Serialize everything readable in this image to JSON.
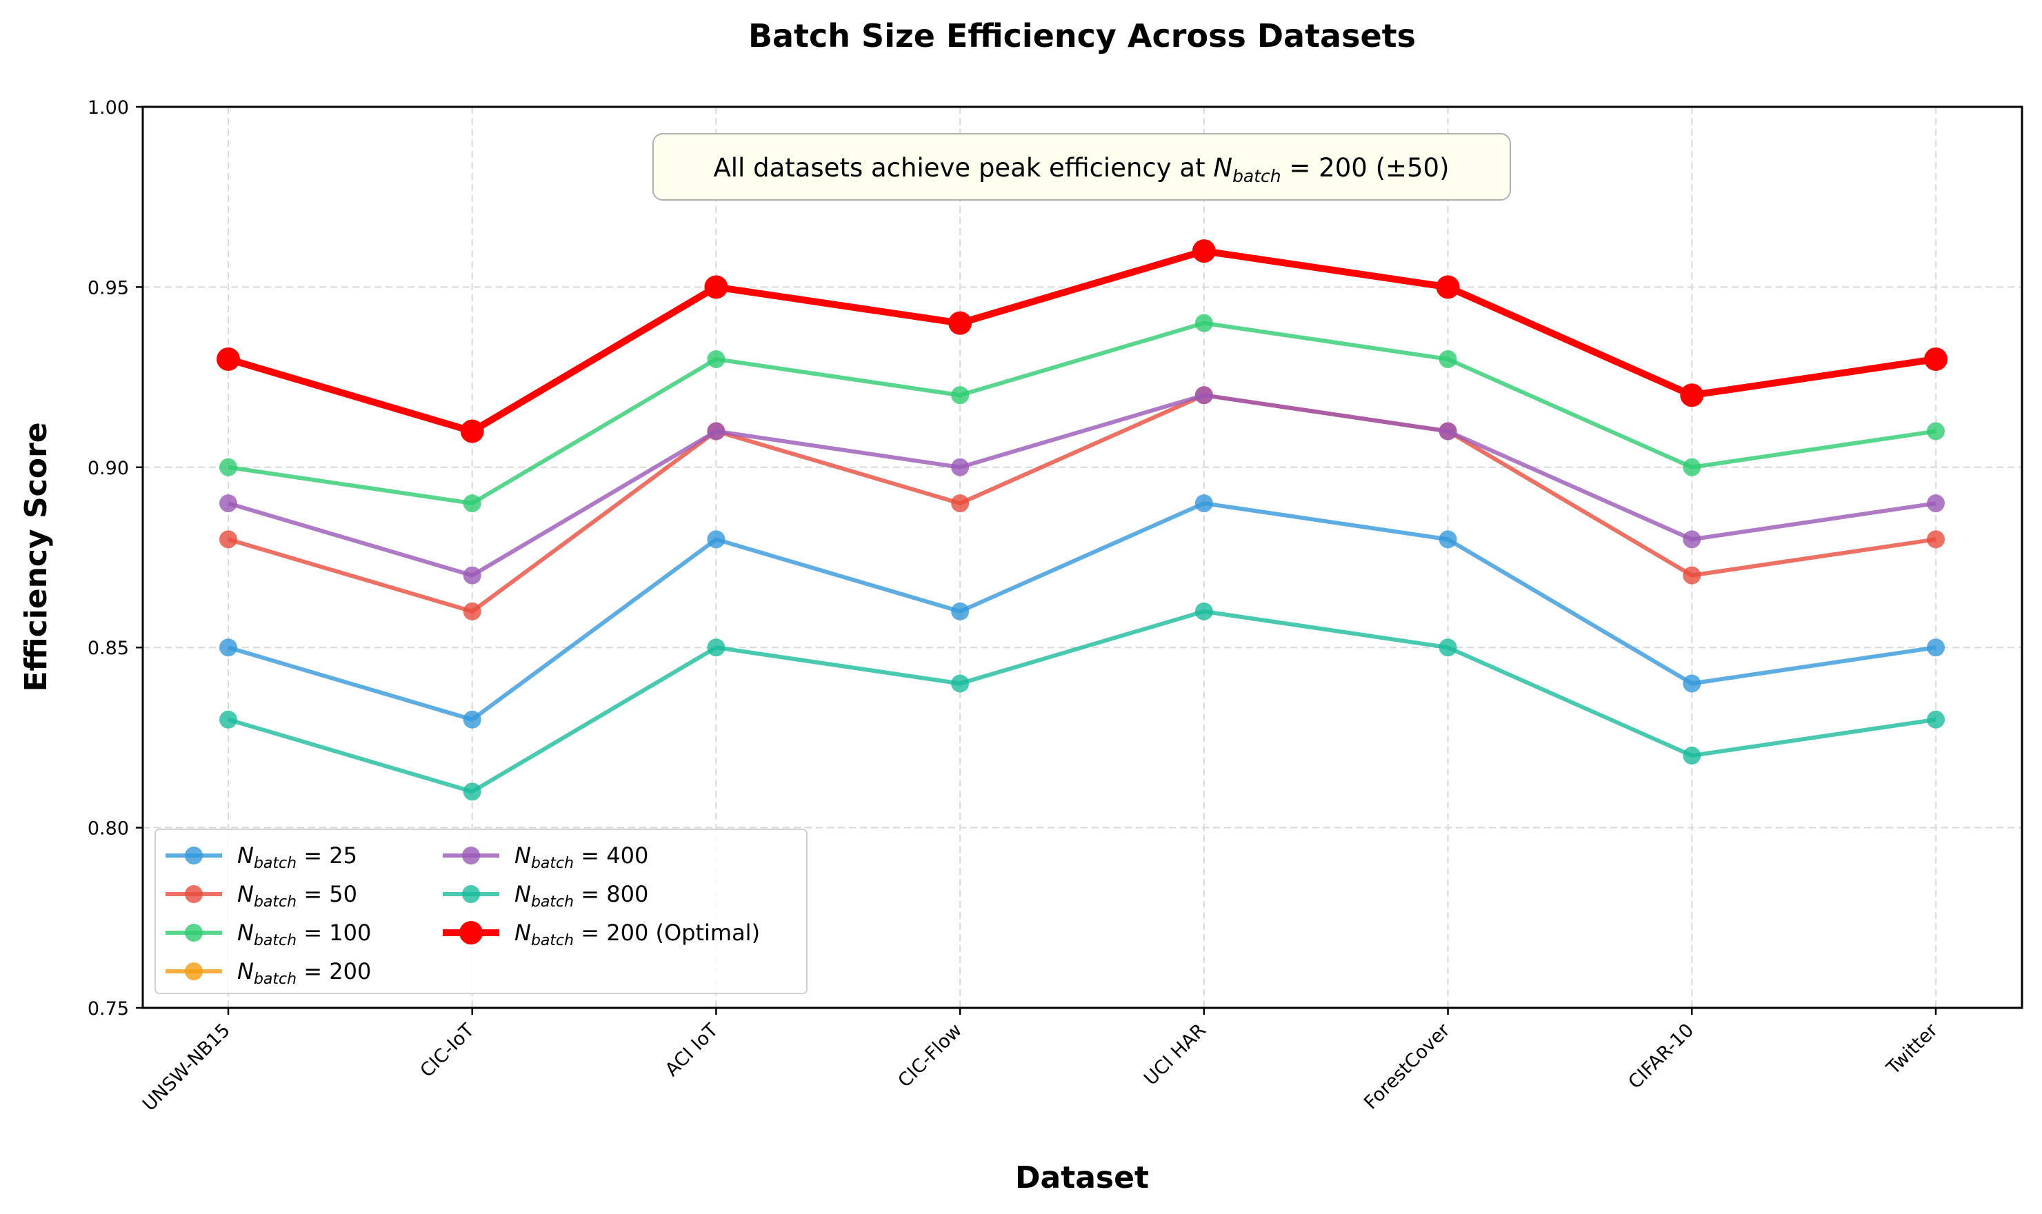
{
  "chart_data": {
    "type": "line",
    "title": "Batch Size Efficiency Across Datasets",
    "xlabel": "Dataset",
    "ylabel": "Efficiency Score",
    "ylim": [
      0.75,
      1.0
    ],
    "yticks": [
      "0.75",
      "0.80",
      "0.85",
      "0.90",
      "0.95",
      "1.00"
    ],
    "ytick_values": [
      0.75,
      0.8,
      0.85,
      0.9,
      0.95,
      1.0
    ],
    "grid": true,
    "legend_position": "lower-left",
    "categories": [
      "UNSW-NB15",
      "CIC-IoT",
      "ACI IoT",
      "CIC-Flow",
      "UCI HAR",
      "ForestCover",
      "CIFAR-10",
      "Twitter"
    ],
    "annotation": {
      "prefix": "All datasets achieve peak efficiency at ",
      "var": "N",
      "sub": "batch",
      "eq": " = 200 (±50)"
    },
    "series": [
      {
        "name": "N_batch = 25",
        "var": "N",
        "sub": "batch",
        "eq": " = 25",
        "color": "#3498db",
        "values": [
          0.85,
          0.83,
          0.88,
          0.86,
          0.89,
          0.88,
          0.84,
          0.85
        ]
      },
      {
        "name": "N_batch = 50",
        "var": "N",
        "sub": "batch",
        "eq": " = 50",
        "color": "#e74c3c",
        "values": [
          0.88,
          0.86,
          0.91,
          0.89,
          0.92,
          0.91,
          0.87,
          0.88
        ]
      },
      {
        "name": "N_batch = 100",
        "var": "N",
        "sub": "batch",
        "eq": " = 100",
        "color": "#2ecc71",
        "values": [
          0.9,
          0.89,
          0.93,
          0.92,
          0.94,
          0.93,
          0.9,
          0.91
        ]
      },
      {
        "name": "N_batch = 200",
        "var": "N",
        "sub": "batch",
        "eq": " = 200",
        "color": "#f39c12",
        "values": [
          0.93,
          0.91,
          0.95,
          0.94,
          0.96,
          0.95,
          0.92,
          0.93
        ]
      },
      {
        "name": "N_batch = 400",
        "var": "N",
        "sub": "batch",
        "eq": " = 400",
        "color": "#9b59b6",
        "values": [
          0.89,
          0.87,
          0.91,
          0.9,
          0.92,
          0.91,
          0.88,
          0.89
        ]
      },
      {
        "name": "N_batch = 800",
        "var": "N",
        "sub": "batch",
        "eq": " = 800",
        "color": "#1abc9c",
        "values": [
          0.83,
          0.81,
          0.85,
          0.84,
          0.86,
          0.85,
          0.82,
          0.83
        ]
      },
      {
        "name": "N_batch = 200 (Optimal)",
        "var": "N",
        "sub": "batch",
        "eq": " = 200 (Optimal)",
        "color": "#ff0000",
        "highlight": true,
        "values": [
          0.93,
          0.91,
          0.95,
          0.94,
          0.96,
          0.95,
          0.92,
          0.93
        ]
      }
    ]
  }
}
